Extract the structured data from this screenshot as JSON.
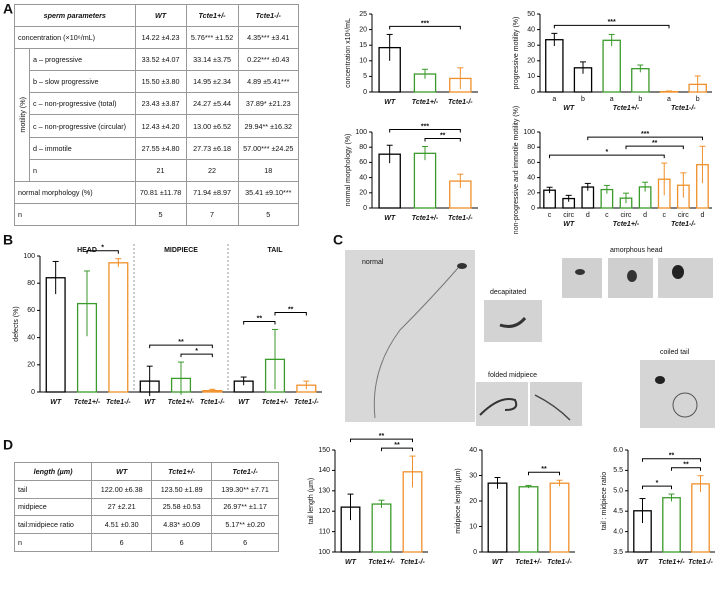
{
  "panel_labels": [
    "A",
    "B",
    "C",
    "D"
  ],
  "table_a": {
    "header": [
      "sperm parameters",
      "WT",
      "Tcte1+/-",
      "Tcte1-/-"
    ],
    "rows": [
      [
        "concentration (×10⁶/mL)",
        "14.22 ±4.23",
        "5.76*** ±1.52",
        "4.35*** ±3.41"
      ],
      {
        "label": "motility (%)",
        "rows": [
          [
            "a – progressive",
            "33.52 ±4.07",
            "33.14 ±3.75",
            "0.22*** ±0.43"
          ],
          [
            "b – slow progressive",
            "15.50 ±3.80",
            "14.95 ±2.34",
            "4.89 ±5.41***"
          ],
          [
            "c – non-progressive (total)",
            "23.43 ±3.87",
            "24.27 ±5.44",
            "37.89* ±21.23"
          ],
          [
            "c – non-progressive (circular)",
            "12.43 ±4.20",
            "13.00 ±6.52",
            "29.94** ±16.32"
          ],
          [
            "d – immotile",
            "27.55 ±4.80",
            "27.73 ±6.18",
            "57.00*** ±24.25"
          ],
          [
            "n",
            "21",
            "22",
            "18"
          ]
        ]
      },
      [
        "normal morphology (%)",
        "70.81 ±11.78",
        "71.94 ±8.97",
        "35.41 ±9.10***"
      ],
      [
        "n",
        "5",
        "7",
        "5"
      ]
    ]
  },
  "table_d": {
    "header": [
      "length (µm)",
      "WT",
      "Tcte1+/-",
      "Tcte1-/-"
    ],
    "rows": [
      [
        "tail",
        "122.00 ±6.38",
        "123.50 ±1.89",
        "139.30** ±7.71"
      ],
      [
        "midpiece",
        "27 ±2.21",
        "25.58 ±0.53",
        "26.97** ±1.17"
      ],
      [
        "tail:midpiece ratio",
        "4.51 ±0.30",
        "4.83* ±0.09",
        "5.17** ±0.20"
      ],
      [
        "n",
        "6",
        "6",
        "6"
      ]
    ]
  },
  "panel_c": {
    "labels": [
      "normal",
      "decapitated",
      "amorphous head",
      "folded midpiece",
      "coiled tail"
    ]
  },
  "chart_data": [
    {
      "type": "bar",
      "ylabel": "concentration x10⁶/mL",
      "categories": [
        "WT",
        "Tcte1+/-",
        "Tcte1-/-"
      ],
      "values": [
        14.22,
        5.76,
        4.35
      ],
      "errors": [
        4.23,
        1.52,
        3.41
      ],
      "colors": [
        "#000000",
        "#3a9a2a",
        "#f0902a"
      ],
      "ylim": [
        0,
        25
      ],
      "yticks": [
        0,
        5,
        10,
        15,
        20,
        25
      ],
      "comparisons": [
        {
          "between": [
            0,
            2
          ],
          "label": "***"
        }
      ]
    },
    {
      "type": "bar",
      "ylabel": "progressive motility (%)",
      "categories": [
        "a",
        "b",
        "a",
        "b",
        "a",
        "b"
      ],
      "groups": [
        "WT",
        "Tcte1+/-",
        "Tcte1-/-"
      ],
      "values": [
        33.52,
        15.5,
        33.14,
        14.95,
        0.22,
        4.89
      ],
      "errors": [
        4.07,
        3.8,
        3.75,
        2.34,
        0.43,
        5.41
      ],
      "colors": [
        "#000000",
        "#000000",
        "#3a9a2a",
        "#3a9a2a",
        "#f0902a",
        "#f0902a"
      ],
      "ylim": [
        0,
        50
      ],
      "yticks": [
        0,
        10,
        20,
        30,
        40,
        50
      ],
      "comparisons": [
        {
          "between": [
            0,
            4
          ],
          "label": "***"
        }
      ]
    },
    {
      "type": "bar",
      "ylabel": "normal morphology (%)",
      "categories": [
        "WT",
        "Tcte1+/-",
        "Tcte1-/-"
      ],
      "values": [
        70.81,
        71.94,
        35.41
      ],
      "errors": [
        11.78,
        8.97,
        9.1
      ],
      "colors": [
        "#000000",
        "#3a9a2a",
        "#f0902a"
      ],
      "ylim": [
        0,
        100
      ],
      "yticks": [
        0,
        20,
        40,
        60,
        80,
        100
      ],
      "comparisons": [
        {
          "between": [
            1,
            2
          ],
          "label": "**"
        },
        {
          "between": [
            0,
            2
          ],
          "label": "***"
        }
      ]
    },
    {
      "type": "bar",
      "ylabel": "non-progressive and immotile motility (%)",
      "categories": [
        "c",
        "circ",
        "d",
        "c",
        "circ",
        "d",
        "c",
        "circ",
        "d"
      ],
      "groups": [
        "WT",
        "Tcte1+/-",
        "Tcte1-/-"
      ],
      "values": [
        23.43,
        12.43,
        27.55,
        24.27,
        13.0,
        27.73,
        37.89,
        29.94,
        57.0
      ],
      "errors": [
        3.87,
        4.2,
        4.8,
        5.44,
        6.52,
        6.18,
        21.23,
        16.32,
        24.25
      ],
      "colors": [
        "#000000",
        "#000000",
        "#000000",
        "#3a9a2a",
        "#3a9a2a",
        "#3a9a2a",
        "#f0902a",
        "#f0902a",
        "#f0902a"
      ],
      "ylim": [
        0,
        100
      ],
      "yticks": [
        0,
        20,
        40,
        60,
        80,
        100
      ],
      "comparisons": [
        {
          "between": [
            0,
            6
          ],
          "label": "*"
        },
        {
          "between": [
            4,
            7
          ],
          "label": "**"
        },
        {
          "between": [
            2,
            8
          ],
          "label": "***"
        }
      ]
    },
    {
      "type": "bar",
      "ylabel": "defects (%)",
      "sections": [
        "HEAD",
        "MIDPIECE",
        "TAIL"
      ],
      "categories": [
        "WT",
        "Tcte1+/-",
        "Tcte1-/-",
        "WT",
        "Tcte1+/-",
        "Tcte1-/-",
        "WT",
        "Tcte1+/-",
        "Tcte1-/-"
      ],
      "values": [
        84,
        65,
        95,
        8,
        10,
        1,
        8,
        24,
        5
      ],
      "errors": [
        12,
        24,
        3,
        11,
        12,
        1,
        3,
        22,
        3
      ],
      "colors": [
        "#000000",
        "#3a9a2a",
        "#f0902a",
        "#000000",
        "#3a9a2a",
        "#f0902a",
        "#000000",
        "#3a9a2a",
        "#f0902a"
      ],
      "ylim": [
        0,
        100
      ],
      "yticks": [
        0,
        20,
        40,
        60,
        80,
        100
      ],
      "comparisons": [
        {
          "between": [
            1,
            2
          ],
          "label": "*"
        },
        {
          "between": [
            4,
            5
          ],
          "label": "*"
        },
        {
          "between": [
            3,
            5
          ],
          "label": "**"
        },
        {
          "between": [
            6,
            7
          ],
          "label": "**"
        },
        {
          "between": [
            7,
            8
          ],
          "label": "**"
        }
      ]
    },
    {
      "type": "bar",
      "ylabel": "tail length (µm)",
      "categories": [
        "WT",
        "Tcte1+/-",
        "Tcte1-/-"
      ],
      "values": [
        122.0,
        123.5,
        139.3
      ],
      "errors": [
        6.38,
        1.89,
        7.71
      ],
      "colors": [
        "#000000",
        "#3a9a2a",
        "#f0902a"
      ],
      "ylim": [
        100,
        150
      ],
      "yticks": [
        100,
        110,
        120,
        130,
        140,
        150
      ],
      "comparisons": [
        {
          "between": [
            1,
            2
          ],
          "label": "**"
        },
        {
          "between": [
            0,
            2
          ],
          "label": "**"
        }
      ]
    },
    {
      "type": "bar",
      "ylabel": "midpiece length (µm)",
      "categories": [
        "WT",
        "Tcte1+/-",
        "Tcte1-/-"
      ],
      "values": [
        27,
        25.58,
        26.97
      ],
      "errors": [
        2.21,
        0.53,
        1.17
      ],
      "colors": [
        "#000000",
        "#3a9a2a",
        "#f0902a"
      ],
      "ylim": [
        0,
        40
      ],
      "yticks": [
        0,
        10,
        20,
        30,
        40
      ],
      "comparisons": [
        {
          "between": [
            1,
            2
          ],
          "label": "**"
        }
      ]
    },
    {
      "type": "bar",
      "ylabel": "tail : midpiece ratio",
      "categories": [
        "WT",
        "Tcte1+/-",
        "Tcte1-/-"
      ],
      "values": [
        4.51,
        4.83,
        5.17
      ],
      "errors": [
        0.3,
        0.09,
        0.2
      ],
      "colors": [
        "#000000",
        "#3a9a2a",
        "#f0902a"
      ],
      "ylim": [
        3.5,
        6.0
      ],
      "yticks": [
        3.5,
        {
          "value": 4,
          "label": "4.0"
        },
        4.5,
        {
          "value": 5,
          "label": "5.0"
        },
        5.5,
        {
          "value": 6,
          "label": "6.0"
        }
      ],
      "comparisons": [
        {
          "between": [
            0,
            1
          ],
          "label": "*"
        },
        {
          "between": [
            1,
            2
          ],
          "label": "**"
        },
        {
          "between": [
            0,
            2
          ],
          "label": "**"
        }
      ]
    }
  ]
}
